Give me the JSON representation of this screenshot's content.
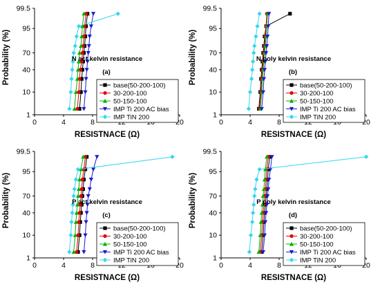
{
  "chart_data": [
    {
      "type": "line",
      "title": "N act kelvin resistance",
      "label": "(a)",
      "xlabel": "RESISTNACE (Ω)",
      "ylabel": "Probability (%)",
      "xlim": [
        0,
        20
      ],
      "x_ticks": [
        0,
        4,
        8,
        12,
        16,
        20
      ],
      "y_scale": "probability",
      "ylim": [
        1,
        99.5
      ],
      "y_ticks": [
        1,
        10,
        40,
        70,
        95,
        99.5
      ],
      "y_tick_labels": [
        "1",
        "10",
        "40",
        "70",
        "95",
        "99.5"
      ],
      "legend_position": "bottom-right",
      "series": [
        {
          "name": "base(50-200-100)",
          "color": "#000000",
          "marker": "square",
          "x": [
            6.2,
            6.4,
            6.5,
            6.6,
            6.7,
            6.8,
            6.9,
            7.0,
            7.1,
            7.3
          ],
          "y": [
            2,
            10,
            25,
            40,
            55,
            70,
            80,
            90,
            96,
            99
          ]
        },
        {
          "name": "30-200-100",
          "color": "#e00000",
          "marker": "circle",
          "x": [
            5.9,
            6.1,
            6.2,
            6.3,
            6.5,
            6.6,
            6.7,
            6.8,
            6.9,
            7.1
          ],
          "y": [
            2,
            10,
            25,
            40,
            55,
            70,
            80,
            90,
            96,
            99
          ]
        },
        {
          "name": "50-150-100",
          "color": "#00b000",
          "marker": "triangle-up",
          "x": [
            5.5,
            5.7,
            5.9,
            6.0,
            6.1,
            6.2,
            6.4,
            6.5,
            6.6,
            6.8
          ],
          "y": [
            2,
            10,
            25,
            40,
            55,
            70,
            80,
            90,
            96,
            99
          ]
        },
        {
          "name": "IMP Ti 200 AC bias",
          "color": "#1a1ad0",
          "marker": "triangle-down",
          "x": [
            6.8,
            7.0,
            7.1,
            7.2,
            7.3,
            7.4,
            7.5,
            7.6,
            7.8,
            8.1
          ],
          "y": [
            2,
            10,
            25,
            40,
            55,
            70,
            80,
            90,
            96,
            99
          ]
        },
        {
          "name": "IMP TiN 200",
          "color": "#33d6f0",
          "marker": "diamond",
          "x": [
            4.8,
            5.0,
            5.1,
            5.2,
            5.3,
            5.4,
            5.6,
            5.8,
            6.1,
            11.5
          ],
          "y": [
            2,
            10,
            25,
            40,
            55,
            70,
            80,
            90,
            96,
            99
          ]
        }
      ]
    },
    {
      "type": "line",
      "title": "N poly kelvin resistance",
      "label": "(b)",
      "xlabel": "RESISTNACE (Ω)",
      "ylabel": "Probability (%)",
      "xlim": [
        0,
        20
      ],
      "x_ticks": [
        0,
        4,
        8,
        12,
        16,
        20
      ],
      "y_scale": "probability",
      "ylim": [
        1,
        99.5
      ],
      "y_ticks": [
        1,
        10,
        40,
        70,
        95,
        99.5
      ],
      "y_tick_labels": [
        "1",
        "10",
        "40",
        "70",
        "95",
        "99.5"
      ],
      "legend_position": "bottom-right",
      "series": [
        {
          "name": "base(50-200-100)",
          "color": "#000000",
          "marker": "square",
          "x": [
            5.2,
            5.4,
            5.5,
            5.6,
            5.7,
            5.8,
            5.9,
            6.0,
            6.2,
            9.5
          ],
          "y": [
            2,
            10,
            25,
            40,
            55,
            70,
            80,
            90,
            96,
            99
          ]
        },
        {
          "name": "30-200-100",
          "color": "#e00000",
          "marker": "circle",
          "x": [
            5.3,
            5.5,
            5.6,
            5.7,
            5.8,
            5.9,
            6.0,
            6.1,
            6.2,
            6.3
          ],
          "y": [
            2,
            10,
            25,
            40,
            55,
            70,
            80,
            90,
            96,
            99
          ]
        },
        {
          "name": "50-150-100",
          "color": "#00b000",
          "marker": "triangle-up",
          "x": [
            5.4,
            5.6,
            5.7,
            5.8,
            5.9,
            6.0,
            6.1,
            6.2,
            6.3,
            6.4
          ],
          "y": [
            2,
            10,
            25,
            40,
            55,
            70,
            80,
            90,
            96,
            99
          ]
        },
        {
          "name": "IMP Ti 200 AC bias",
          "color": "#1a1ad0",
          "marker": "triangle-down",
          "x": [
            5.6,
            5.8,
            5.9,
            6.0,
            6.1,
            6.2,
            6.3,
            6.4,
            6.5,
            6.6
          ],
          "y": [
            2,
            10,
            25,
            40,
            55,
            70,
            80,
            90,
            96,
            99
          ]
        },
        {
          "name": "IMP TiN 200",
          "color": "#33d6f0",
          "marker": "diamond",
          "x": [
            3.8,
            4.0,
            4.2,
            4.3,
            4.4,
            4.5,
            4.6,
            4.8,
            5.0,
            5.3
          ],
          "y": [
            2,
            10,
            25,
            40,
            55,
            70,
            80,
            90,
            96,
            99
          ]
        }
      ]
    },
    {
      "type": "line",
      "title": "P act kelvin resistance",
      "label": "(c)",
      "xlabel": "RESISTNACE (Ω)",
      "ylabel": "Probability (%)",
      "xlim": [
        0,
        20
      ],
      "x_ticks": [
        0,
        4,
        8,
        12,
        16,
        20
      ],
      "y_scale": "probability",
      "ylim": [
        1,
        99.5
      ],
      "y_ticks": [
        1,
        10,
        40,
        70,
        95,
        99.5
      ],
      "y_tick_labels": [
        "1",
        "10",
        "40",
        "70",
        "95",
        "99.5"
      ],
      "legend_position": "bottom-right",
      "series": [
        {
          "name": "base(50-200-100)",
          "color": "#000000",
          "marker": "square",
          "x": [
            6.0,
            6.2,
            6.3,
            6.4,
            6.5,
            6.6,
            6.7,
            6.8,
            7.0,
            7.2
          ],
          "y": [
            2,
            10,
            25,
            40,
            55,
            70,
            80,
            90,
            96,
            99
          ]
        },
        {
          "name": "30-200-100",
          "color": "#e00000",
          "marker": "circle",
          "x": [
            5.8,
            6.0,
            6.1,
            6.2,
            6.3,
            6.4,
            6.5,
            6.6,
            6.8,
            7.0
          ],
          "y": [
            2,
            10,
            25,
            40,
            55,
            70,
            80,
            90,
            96,
            99
          ]
        },
        {
          "name": "50-150-100",
          "color": "#00b000",
          "marker": "triangle-up",
          "x": [
            5.4,
            5.6,
            5.7,
            5.8,
            5.9,
            6.0,
            6.1,
            6.2,
            6.4,
            6.7
          ],
          "y": [
            2,
            10,
            25,
            40,
            55,
            70,
            80,
            90,
            96,
            99
          ]
        },
        {
          "name": "IMP Ti 200 AC bias",
          "color": "#1a1ad0",
          "marker": "triangle-down",
          "x": [
            6.8,
            7.0,
            7.1,
            7.2,
            7.3,
            7.4,
            7.6,
            7.8,
            8.1,
            8.6
          ],
          "y": [
            2,
            10,
            25,
            40,
            55,
            70,
            80,
            90,
            96,
            99
          ]
        },
        {
          "name": "IMP TiN 200",
          "color": "#33d6f0",
          "marker": "diamond",
          "x": [
            4.8,
            5.0,
            5.1,
            5.2,
            5.3,
            5.4,
            5.5,
            5.7,
            6.0,
            19.0
          ],
          "y": [
            2,
            10,
            25,
            40,
            55,
            70,
            80,
            90,
            96,
            99
          ]
        }
      ]
    },
    {
      "type": "line",
      "title": "P poly kelvin resistance",
      "label": "(d)",
      "xlabel": "RESISTNACE (Ω)",
      "ylabel": "Probability (%)",
      "xlim": [
        0,
        20
      ],
      "x_ticks": [
        0,
        4,
        8,
        12,
        16,
        20
      ],
      "y_scale": "probability",
      "ylim": [
        1,
        99.5
      ],
      "y_ticks": [
        1,
        10,
        40,
        70,
        95,
        99.5
      ],
      "y_tick_labels": [
        "1",
        "10",
        "40",
        "70",
        "95",
        "99.5"
      ],
      "legend_position": "bottom-right",
      "series": [
        {
          "name": "base(50-200-100)",
          "color": "#000000",
          "marker": "square",
          "x": [
            5.6,
            5.8,
            5.9,
            6.0,
            6.1,
            6.2,
            6.3,
            6.4,
            6.5,
            6.7
          ],
          "y": [
            2,
            10,
            25,
            40,
            55,
            70,
            80,
            90,
            96,
            99
          ]
        },
        {
          "name": "30-200-100",
          "color": "#e00000",
          "marker": "circle",
          "x": [
            5.4,
            5.6,
            5.7,
            5.8,
            5.9,
            6.0,
            6.1,
            6.2,
            6.3,
            6.5
          ],
          "y": [
            2,
            10,
            25,
            40,
            55,
            70,
            80,
            90,
            96,
            99
          ]
        },
        {
          "name": "50-150-100",
          "color": "#00b000",
          "marker": "triangle-up",
          "x": [
            5.2,
            5.4,
            5.5,
            5.6,
            5.7,
            5.8,
            5.9,
            6.0,
            6.1,
            6.3
          ],
          "y": [
            2,
            10,
            25,
            40,
            55,
            70,
            80,
            90,
            96,
            99
          ]
        },
        {
          "name": "IMP Ti 200 AC bias",
          "color": "#1a1ad0",
          "marker": "triangle-down",
          "x": [
            5.8,
            6.0,
            6.1,
            6.2,
            6.3,
            6.4,
            6.5,
            6.6,
            6.8,
            7.0
          ],
          "y": [
            2,
            10,
            25,
            40,
            55,
            70,
            80,
            90,
            96,
            99
          ]
        },
        {
          "name": "IMP TiN 200",
          "color": "#33d6f0",
          "marker": "diamond",
          "x": [
            3.9,
            4.1,
            4.3,
            4.4,
            4.5,
            4.6,
            4.7,
            4.9,
            5.3,
            20.0
          ],
          "y": [
            2,
            10,
            25,
            40,
            55,
            70,
            80,
            90,
            96,
            99
          ]
        }
      ]
    }
  ]
}
